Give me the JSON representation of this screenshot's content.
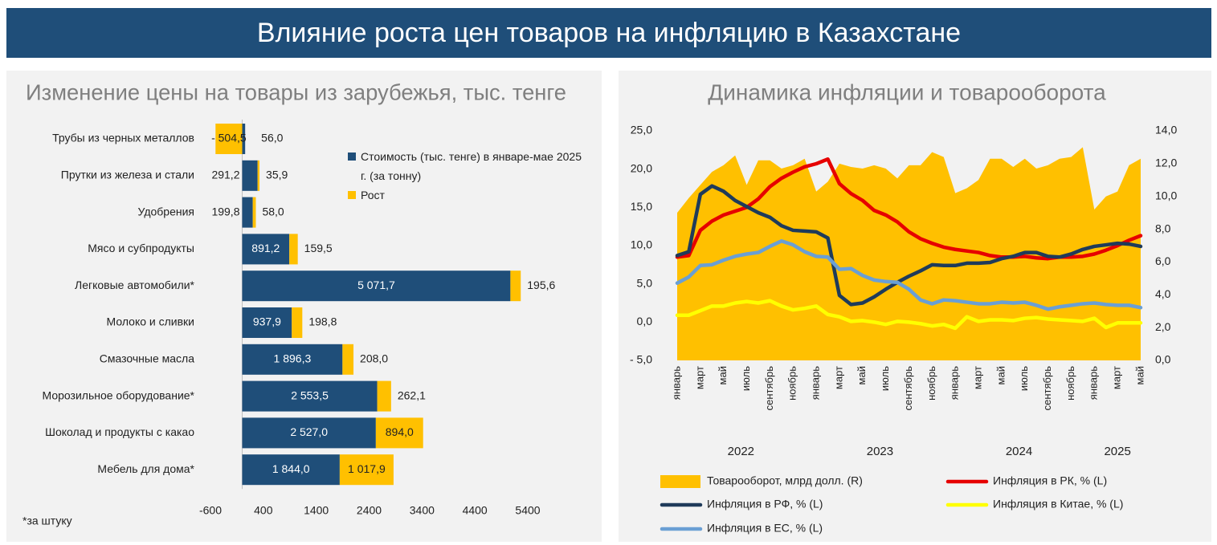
{
  "header": {
    "title": "Влияние роста цен товаров на инфляцию в Казахстане"
  },
  "chart_data": [
    {
      "type": "bar",
      "orientation": "horizontal",
      "stacked": true,
      "title": "Изменение цены на товары из зарубежья, тыс. тенге",
      "note": "*за штуку",
      "categories": [
        "Трубы из черных металлов",
        "Прутки из железа и стали",
        "Удобрения",
        "Мясо и субпродукты",
        "Легковые автомобили*",
        "Молоко и сливки",
        "Смазочные масла",
        "Морозильное оборудование*",
        "Шоколад и продукты с какао",
        "Мебель для дома*"
      ],
      "series": [
        {
          "name": "Стоимость (тыс. тенге) в январе-мае 2025 г. (за тонну)",
          "color": "#1f4e79",
          "values": [
            56.0,
            291.2,
            199.8,
            891.2,
            5071.7,
            937.9,
            1896.3,
            2553.5,
            2527.0,
            1844.0
          ],
          "value_labels": [
            "56,0",
            "291,2",
            "199,8",
            "891,2",
            "5 071,7",
            "937,9",
            "1 896,3",
            "2 553,5",
            "2 527,0",
            "1 844,0"
          ]
        },
        {
          "name": "Рост",
          "color": "#ffc000",
          "values": [
            -504.5,
            35.9,
            58.0,
            159.5,
            195.6,
            198.8,
            208.0,
            262.1,
            894.0,
            1017.9
          ],
          "value_labels": [
            "- 504,5",
            "35,9",
            "58,0",
            "159,5",
            "195,6",
            "198,8",
            "208,0",
            "262,1",
            "894,0",
            "1 017,9"
          ]
        }
      ],
      "xlim": [
        -600,
        5400
      ],
      "xticks": [
        -600,
        400,
        1400,
        2400,
        3400,
        4400,
        5400
      ],
      "legend": "top-right"
    },
    {
      "type": "line",
      "title": "Динамика инфляции и товарооборота",
      "categories": [
        "январь",
        null,
        "март",
        null,
        "май",
        null,
        "июль",
        null,
        "сентябрь",
        null,
        "ноябрь",
        null,
        "январь",
        null,
        "март",
        null,
        "май",
        null,
        "июль",
        null,
        "сентябрь",
        null,
        "ноябрь",
        null,
        "январь",
        null,
        "март",
        null,
        "май",
        null,
        "июль",
        null,
        "сентябрь",
        null,
        "ноябрь",
        null,
        "январь",
        null,
        "март",
        null,
        "май"
      ],
      "years": [
        "2022",
        "2023",
        "2024",
        "2025"
      ],
      "ylim": [
        -5,
        25
      ],
      "yticks": [
        {
          "value": -5,
          "label": "- 5,0"
        },
        {
          "value": 0,
          "label": "0,0"
        },
        {
          "value": 5,
          "label": "5,0"
        },
        {
          "value": 10,
          "label": "10,0"
        },
        {
          "value": 15,
          "label": "15,0"
        },
        {
          "value": 20,
          "label": "20,0"
        },
        {
          "value": 25,
          "label": "25,0"
        }
      ],
      "y2lim": [
        0,
        14
      ],
      "y2ticks": [
        {
          "value": 0,
          "label": "0,0"
        },
        {
          "value": 2,
          "label": "2,0"
        },
        {
          "value": 4,
          "label": "4,0"
        },
        {
          "value": 6,
          "label": "6,0"
        },
        {
          "value": 8,
          "label": "8,0"
        },
        {
          "value": 10,
          "label": "10,0"
        },
        {
          "value": 12,
          "label": "12,0"
        },
        {
          "value": 14,
          "label": "14,0"
        }
      ],
      "series": [
        {
          "name": "Товарооборот, млрд долл. (R)",
          "type": "area",
          "axis": "y2",
          "color": "#ffc000",
          "values": [
            9.0,
            9.9,
            10.7,
            11.5,
            11.9,
            12.5,
            10.7,
            12.2,
            12.2,
            11.7,
            11.9,
            12.3,
            10.3,
            10.9,
            12.0,
            11.8,
            11.7,
            11.9,
            11.7,
            11.1,
            11.9,
            11.9,
            12.7,
            12.4,
            10.2,
            10.5,
            11.0,
            12.3,
            12.3,
            11.8,
            12.3,
            11.7,
            11.9,
            12.3,
            12.4,
            13.0,
            9.2,
            10.0,
            10.3,
            11.9,
            12.3
          ]
        },
        {
          "name": "Инфляция в РК, % (L)",
          "color": "#e60000",
          "values": [
            8.5,
            8.7,
            12.0,
            13.2,
            14.0,
            14.5,
            15.0,
            16.1,
            17.7,
            18.8,
            19.6,
            20.3,
            20.7,
            21.3,
            18.1,
            16.8,
            15.9,
            14.6,
            14.0,
            13.1,
            11.8,
            10.9,
            10.3,
            9.8,
            9.5,
            9.3,
            9.1,
            8.7,
            8.5,
            8.5,
            8.6,
            8.4,
            8.3,
            8.5,
            8.5,
            8.6,
            8.9,
            9.4,
            10.0,
            10.7,
            11.3
          ]
        },
        {
          "name": "Инфляция в РФ, % (L)",
          "color": "#1f3b5a",
          "values": [
            8.7,
            9.2,
            16.7,
            17.8,
            17.1,
            15.9,
            15.1,
            14.3,
            13.7,
            12.6,
            12.0,
            11.9,
            11.8,
            11.0,
            3.5,
            2.3,
            2.5,
            3.3,
            4.3,
            5.2,
            6.0,
            6.7,
            7.5,
            7.4,
            7.4,
            7.7,
            7.7,
            7.8,
            8.3,
            8.6,
            9.1,
            9.1,
            8.6,
            8.5,
            8.9,
            9.5,
            9.9,
            10.1,
            10.3,
            10.2,
            9.9
          ]
        },
        {
          "name": "Инфляция в Китае, % (L)",
          "color": "#ffff00",
          "values": [
            0.9,
            0.9,
            1.5,
            2.1,
            2.1,
            2.5,
            2.7,
            2.5,
            2.8,
            2.1,
            1.6,
            1.8,
            2.1,
            1.0,
            0.7,
            0.1,
            0.2,
            0.0,
            -0.3,
            0.1,
            0.0,
            -0.2,
            -0.5,
            -0.3,
            -0.8,
            0.7,
            0.1,
            0.3,
            0.3,
            0.2,
            0.5,
            0.6,
            0.4,
            0.3,
            0.2,
            0.1,
            0.5,
            -0.7,
            -0.1,
            -0.1,
            -0.1
          ]
        },
        {
          "name": "Инфляция в ЕС, % (L)",
          "color": "#6a9fd4",
          "values": [
            5.1,
            5.9,
            7.4,
            7.5,
            8.1,
            8.6,
            8.9,
            9.1,
            9.9,
            10.6,
            10.1,
            9.2,
            8.6,
            8.5,
            6.9,
            7.0,
            6.1,
            5.5,
            5.3,
            5.2,
            4.3,
            2.9,
            2.4,
            2.9,
            2.8,
            2.6,
            2.4,
            2.4,
            2.6,
            2.5,
            2.6,
            2.2,
            1.7,
            2.0,
            2.2,
            2.4,
            2.5,
            2.3,
            2.2,
            2.2,
            1.9
          ]
        }
      ],
      "legend": "bottom"
    }
  ]
}
